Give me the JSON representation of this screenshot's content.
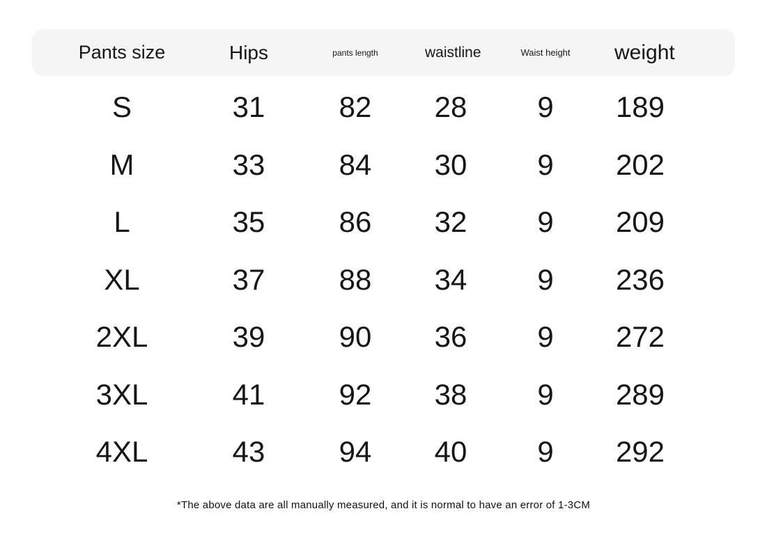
{
  "page": {
    "background": "#ffffff",
    "header_bg": "#f5f5f5",
    "text_color": "#161616"
  },
  "chart_data": {
    "type": "table",
    "columns": [
      "Pants size",
      "Hips",
      "pants length",
      "waistline",
      "Waist height",
      "weight"
    ],
    "rows": [
      [
        "S",
        31,
        82,
        28,
        9,
        189
      ],
      [
        "M",
        33,
        84,
        30,
        9,
        202
      ],
      [
        "L",
        35,
        86,
        32,
        9,
        209
      ],
      [
        "XL",
        37,
        88,
        34,
        9,
        236
      ],
      [
        "2XL",
        39,
        90,
        36,
        9,
        272
      ],
      [
        "3XL",
        41,
        92,
        38,
        9,
        289
      ],
      [
        "4XL",
        43,
        94,
        40,
        9,
        292
      ]
    ],
    "footnote": "*The above data are all manually measured, and it is normal to have an error of 1-3CM",
    "layout_hints": {
      "grid": "off",
      "header_style": "rounded light-gray band",
      "value_alignment": "center"
    }
  }
}
